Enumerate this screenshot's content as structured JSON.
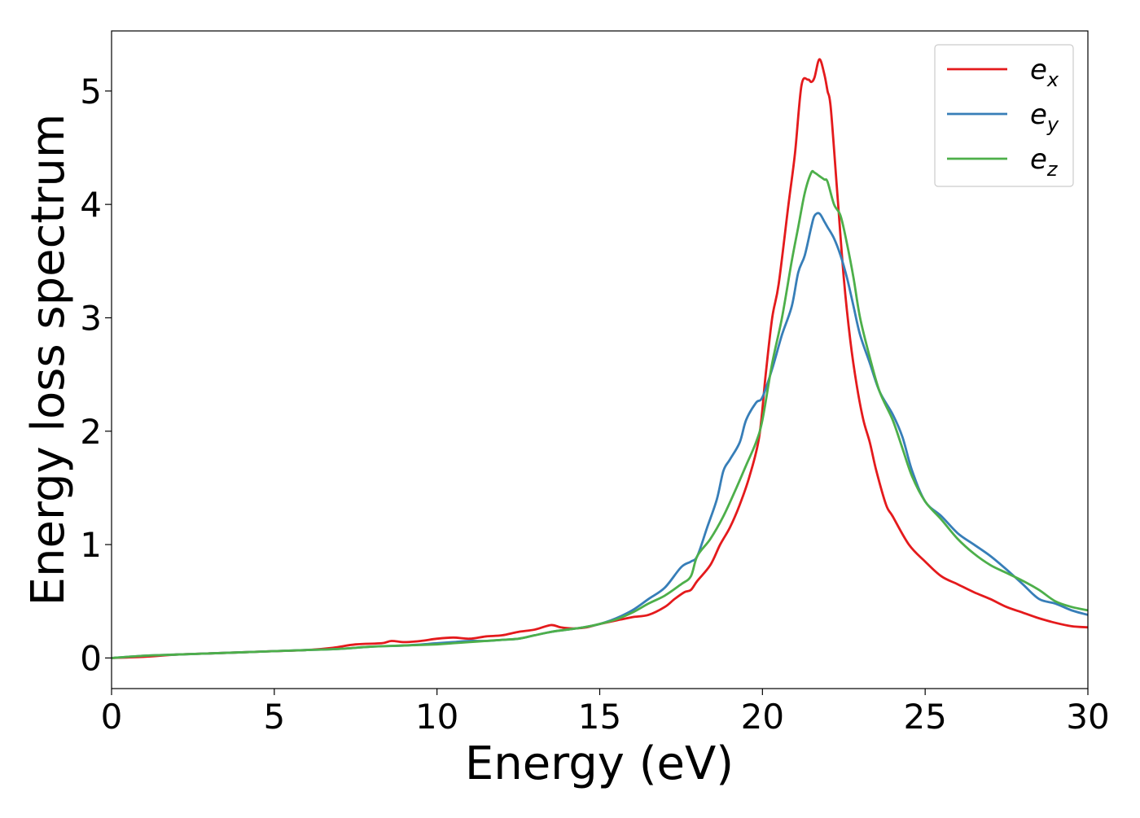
{
  "chart_data": {
    "type": "line",
    "title": "",
    "xlabel": "Energy (eV)",
    "ylabel": "Energy loss spectrum",
    "xlim": [
      0,
      30
    ],
    "ylim": [
      -0.27,
      5.53
    ],
    "xticks": [
      0,
      5,
      10,
      15,
      20,
      25,
      30
    ],
    "yticks": [
      0,
      1,
      2,
      3,
      4,
      5
    ],
    "grid": false,
    "legend": "top-right",
    "series": [
      {
        "name": "e_x",
        "label_base": "e",
        "label_sub": "x",
        "color": "#e41a1c",
        "x": [
          0,
          1,
          2,
          3,
          4,
          5,
          6,
          6.8,
          7.5,
          8.3,
          8.6,
          9.0,
          9.5,
          10.0,
          10.5,
          11.0,
          11.5,
          12.0,
          12.5,
          13.0,
          13.5,
          13.8,
          14.2,
          14.6,
          15.0,
          15.5,
          16.0,
          16.5,
          17.0,
          17.3,
          17.6,
          17.8,
          18.0,
          18.4,
          18.7,
          19.0,
          19.3,
          19.6,
          19.9,
          20.1,
          20.3,
          20.5,
          20.8,
          21.0,
          21.2,
          21.4,
          21.5,
          21.6,
          21.75,
          21.9,
          22.0,
          22.1,
          22.3,
          22.5,
          22.7,
          22.9,
          23.1,
          23.3,
          23.5,
          23.8,
          24.0,
          24.5,
          25.0,
          25.5,
          26.0,
          26.5,
          27.0,
          27.5,
          28.0,
          28.5,
          29.0,
          29.5,
          30.0
        ],
        "y": [
          0.0,
          0.01,
          0.03,
          0.04,
          0.05,
          0.06,
          0.07,
          0.09,
          0.12,
          0.13,
          0.15,
          0.14,
          0.15,
          0.17,
          0.18,
          0.17,
          0.19,
          0.2,
          0.23,
          0.25,
          0.29,
          0.27,
          0.26,
          0.27,
          0.3,
          0.33,
          0.36,
          0.38,
          0.45,
          0.52,
          0.58,
          0.6,
          0.68,
          0.82,
          1.0,
          1.15,
          1.35,
          1.6,
          1.95,
          2.5,
          3.0,
          3.3,
          4.0,
          4.45,
          5.05,
          5.1,
          5.08,
          5.12,
          5.28,
          5.15,
          5.0,
          4.85,
          4.1,
          3.35,
          2.8,
          2.4,
          2.1,
          1.9,
          1.65,
          1.35,
          1.25,
          1.0,
          0.85,
          0.72,
          0.65,
          0.58,
          0.52,
          0.45,
          0.4,
          0.35,
          0.31,
          0.28,
          0.27
        ]
      },
      {
        "name": "e_y",
        "label_base": "e",
        "label_sub": "y",
        "color": "#377eb8",
        "x": [
          0,
          1,
          2,
          3,
          4,
          5,
          6,
          7,
          8,
          9,
          10,
          10.5,
          11,
          11.5,
          12,
          12.5,
          13,
          13.5,
          14,
          14.5,
          15,
          15.5,
          16,
          16.5,
          17.0,
          17.5,
          17.8,
          18.0,
          18.3,
          18.6,
          18.8,
          19.0,
          19.3,
          19.5,
          19.8,
          20.0,
          20.3,
          20.6,
          20.9,
          21.1,
          21.3,
          21.5,
          21.6,
          21.75,
          21.9,
          22.0,
          22.2,
          22.4,
          22.6,
          22.8,
          23.0,
          23.3,
          23.6,
          24.0,
          24.3,
          24.6,
          25.0,
          25.5,
          26.0,
          26.5,
          27.0,
          27.5,
          28.0,
          28.5,
          29.0,
          29.5,
          30.0
        ],
        "y": [
          0.0,
          0.02,
          0.03,
          0.04,
          0.05,
          0.06,
          0.07,
          0.08,
          0.1,
          0.11,
          0.13,
          0.14,
          0.15,
          0.15,
          0.16,
          0.17,
          0.2,
          0.23,
          0.25,
          0.27,
          0.3,
          0.35,
          0.42,
          0.52,
          0.62,
          0.8,
          0.85,
          0.9,
          1.15,
          1.4,
          1.65,
          1.75,
          1.9,
          2.1,
          2.25,
          2.3,
          2.55,
          2.85,
          3.1,
          3.4,
          3.55,
          3.8,
          3.9,
          3.92,
          3.85,
          3.8,
          3.7,
          3.55,
          3.35,
          3.1,
          2.85,
          2.6,
          2.35,
          2.15,
          1.95,
          1.65,
          1.38,
          1.25,
          1.1,
          1.0,
          0.9,
          0.78,
          0.65,
          0.52,
          0.48,
          0.42,
          0.38
        ]
      },
      {
        "name": "e_z",
        "label_base": "e",
        "label_sub": "z",
        "color": "#4daf4a",
        "x": [
          0,
          1,
          2,
          3,
          4,
          5,
          6,
          7,
          8,
          9,
          10,
          10.5,
          11,
          11.5,
          12,
          12.5,
          13,
          13.5,
          14,
          14.5,
          15,
          15.5,
          16,
          16.5,
          17.0,
          17.5,
          17.8,
          18.0,
          18.4,
          18.8,
          19.2,
          19.5,
          19.8,
          20.0,
          20.3,
          20.6,
          20.9,
          21.1,
          21.3,
          21.5,
          21.6,
          21.75,
          21.9,
          22.0,
          22.2,
          22.4,
          22.6,
          22.8,
          23.0,
          23.3,
          23.6,
          24.0,
          24.3,
          24.6,
          25.0,
          25.5,
          26.0,
          26.5,
          27.0,
          27.5,
          28.0,
          28.5,
          29.0,
          29.5,
          30.0
        ],
        "y": [
          0.0,
          0.02,
          0.03,
          0.04,
          0.05,
          0.06,
          0.07,
          0.08,
          0.1,
          0.11,
          0.12,
          0.13,
          0.14,
          0.15,
          0.16,
          0.17,
          0.2,
          0.23,
          0.25,
          0.27,
          0.3,
          0.34,
          0.4,
          0.48,
          0.55,
          0.65,
          0.72,
          0.9,
          1.05,
          1.25,
          1.5,
          1.7,
          1.9,
          2.1,
          2.6,
          3.0,
          3.5,
          3.8,
          4.1,
          4.28,
          4.28,
          4.25,
          4.22,
          4.2,
          4.0,
          3.9,
          3.65,
          3.35,
          3.0,
          2.65,
          2.35,
          2.1,
          1.85,
          1.6,
          1.38,
          1.22,
          1.05,
          0.92,
          0.82,
          0.75,
          0.68,
          0.6,
          0.5,
          0.45,
          0.42
        ]
      }
    ]
  }
}
